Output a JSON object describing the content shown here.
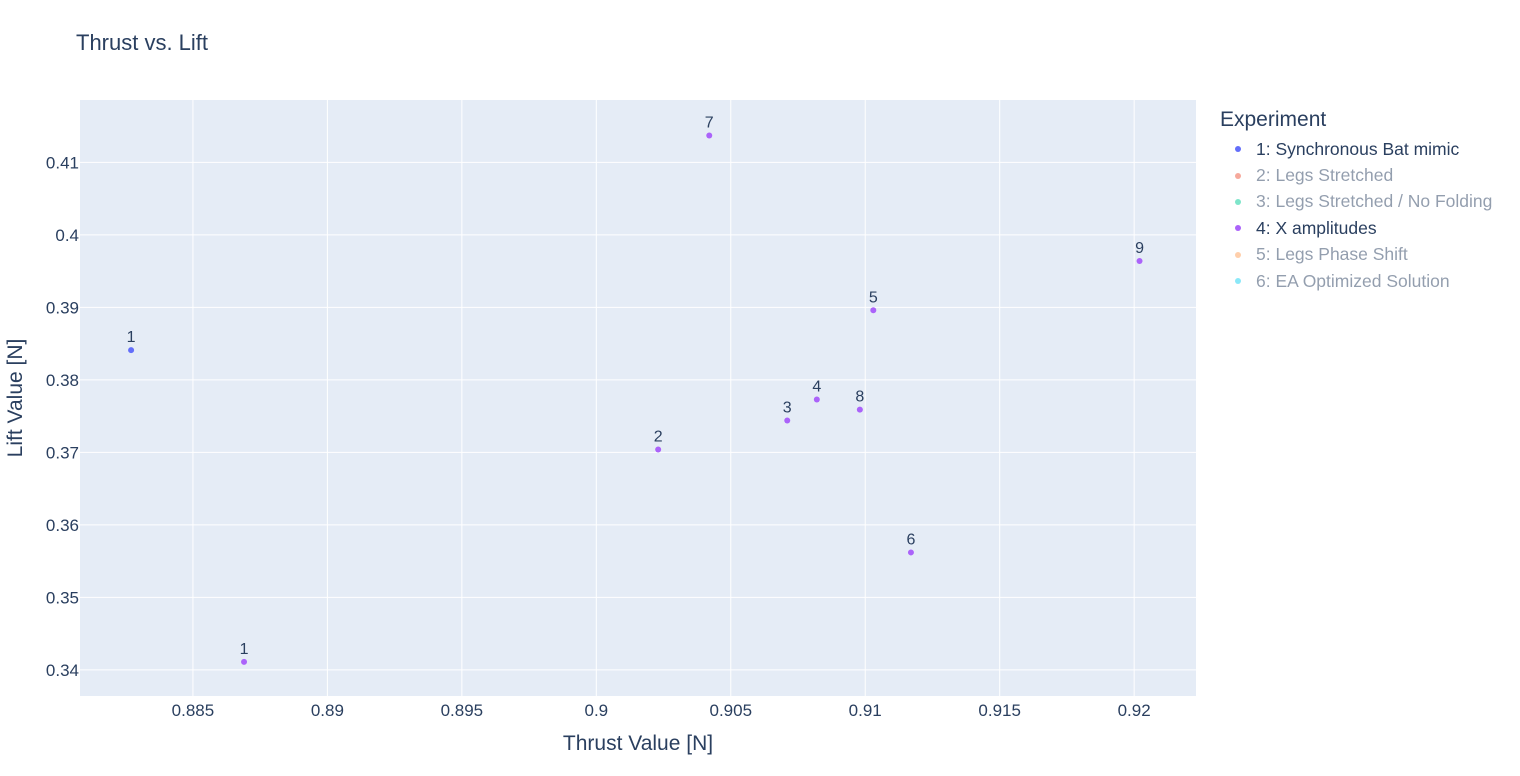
{
  "chart_data": {
    "type": "scatter",
    "title": "Thrust vs. Lift",
    "xlabel": "Thrust Value [N]",
    "ylabel": "Lift Value [N]",
    "xlim": [
      0.8808,
      0.9223
    ],
    "ylim": [
      0.3364,
      0.4186
    ],
    "x_ticks": [
      0.885,
      0.89,
      0.895,
      0.9,
      0.905,
      0.91,
      0.915,
      0.92
    ],
    "x_tick_labels": [
      "0.885",
      "0.89",
      "0.895",
      "0.9",
      "0.905",
      "0.91",
      "0.915",
      "0.92"
    ],
    "y_ticks": [
      0.34,
      0.35,
      0.36,
      0.37,
      0.38,
      0.39,
      0.4,
      0.41
    ],
    "y_tick_labels": [
      "0.34",
      "0.35",
      "0.36",
      "0.37",
      "0.38",
      "0.39",
      "0.4",
      "0.41"
    ],
    "grid": true,
    "legend_title": "Experiment",
    "legend_position": "right",
    "series": [
      {
        "name": "1: Synchronous Bat mimic",
        "color": "#636efa",
        "visible": true,
        "points": [
          {
            "x": 0.8827,
            "y": 0.3841,
            "label": "1"
          }
        ]
      },
      {
        "name": "2: Legs Stretched",
        "color": "#ef553b",
        "visible": false,
        "points": []
      },
      {
        "name": "3: Legs Stretched / No Folding",
        "color": "#00cc96",
        "visible": false,
        "points": []
      },
      {
        "name": "4: X amplitudes",
        "color": "#ab63fa",
        "visible": true,
        "points": [
          {
            "x": 0.8869,
            "y": 0.3411,
            "label": "1"
          },
          {
            "x": 0.9023,
            "y": 0.3704,
            "label": "2"
          },
          {
            "x": 0.9071,
            "y": 0.3744,
            "label": "3"
          },
          {
            "x": 0.9082,
            "y": 0.3773,
            "label": "4"
          },
          {
            "x": 0.9103,
            "y": 0.3896,
            "label": "5"
          },
          {
            "x": 0.9117,
            "y": 0.3562,
            "label": "6"
          },
          {
            "x": 0.9042,
            "y": 0.4137,
            "label": "7"
          },
          {
            "x": 0.9098,
            "y": 0.3759,
            "label": "8"
          },
          {
            "x": 0.9202,
            "y": 0.3964,
            "label": "9"
          }
        ]
      },
      {
        "name": "5: Legs Phase Shift",
        "color": "#ffa15a",
        "visible": false,
        "points": []
      },
      {
        "name": "6: EA Optimized Solution",
        "color": "#19d3f3",
        "visible": false,
        "points": []
      }
    ]
  }
}
